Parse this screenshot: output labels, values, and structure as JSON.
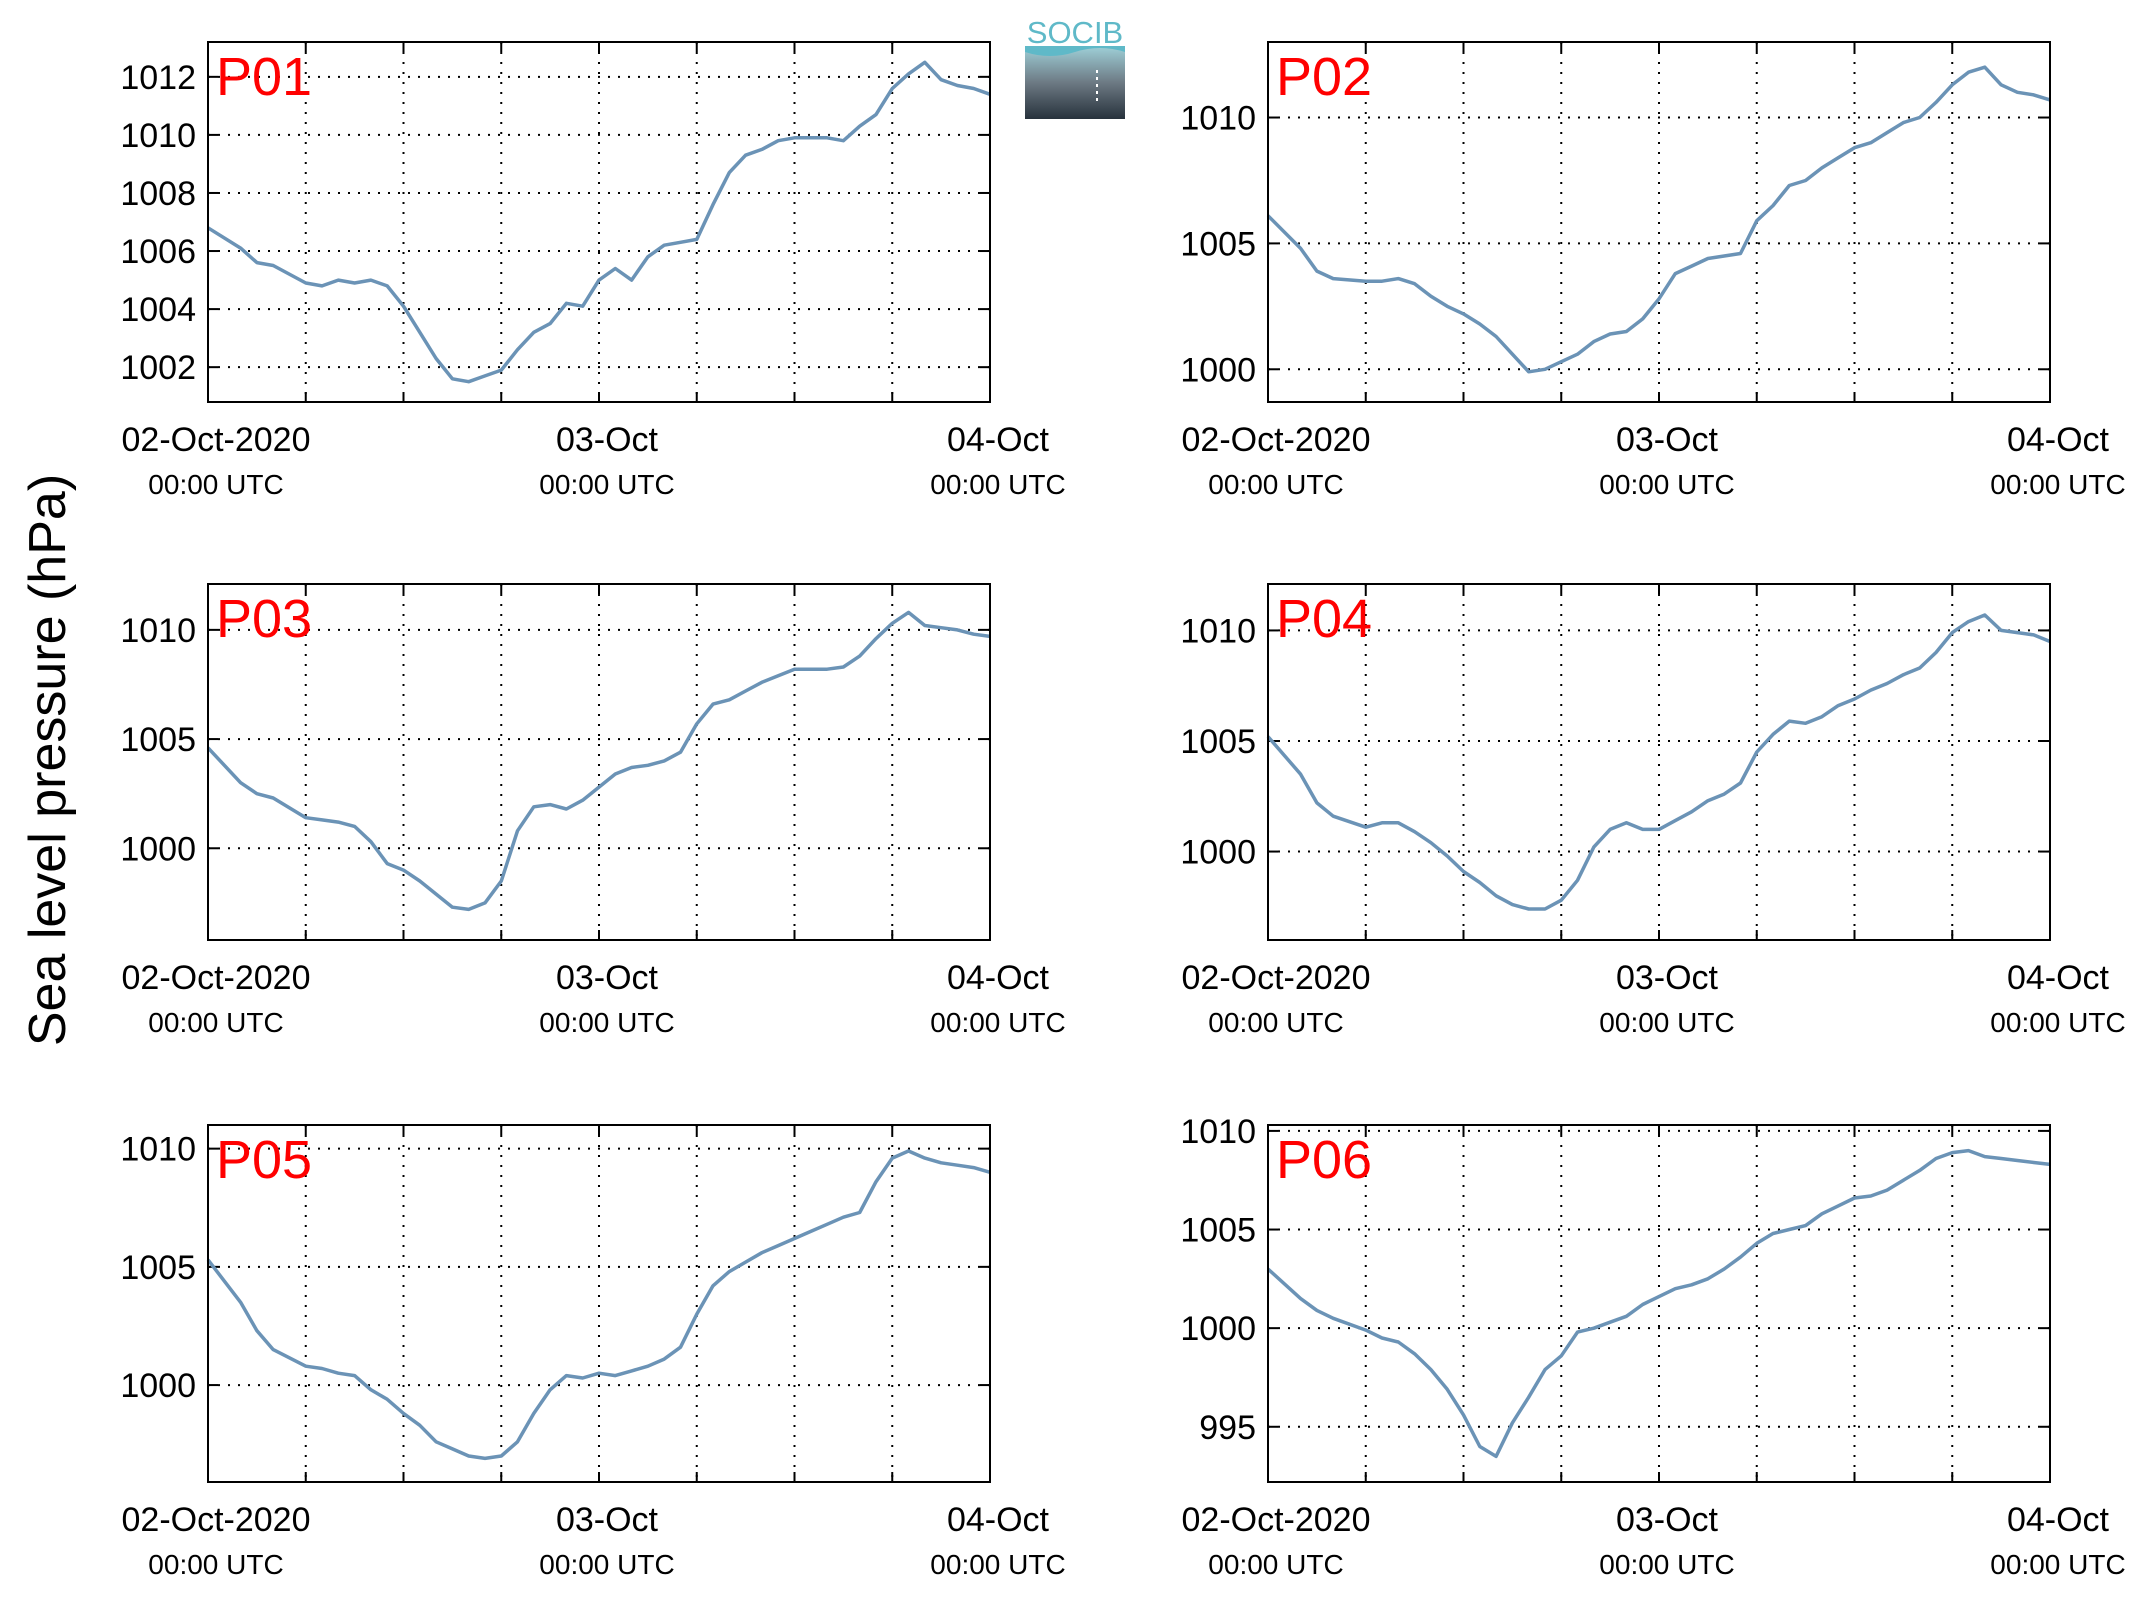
{
  "figure": {
    "ylabel": "Sea level pressure (hPa)",
    "logo_text": "SOCIB",
    "line_color": "#6b93b6",
    "label_color": "#ff0000"
  },
  "chart_data": [
    {
      "type": "line",
      "panel_label": "P01",
      "xlim": [
        0,
        48
      ],
      "ylim": [
        1000.8,
        1013.2
      ],
      "yticks": [
        1002,
        1004,
        1006,
        1008,
        1010,
        1012
      ],
      "xticks": [
        {
          "value": 0,
          "line1": "02-Oct-2020",
          "line2": "00:00 UTC"
        },
        {
          "value": 24,
          "line1": "03-Oct",
          "line2": "00:00 UTC"
        },
        {
          "value": 48,
          "line1": "04-Oct",
          "line2": "00:00 UTC"
        }
      ],
      "grid": true,
      "grid_x_step_hours": 6,
      "x": [
        0,
        2,
        3,
        4,
        6,
        7,
        8,
        9,
        10,
        11,
        12,
        13,
        14,
        15,
        16,
        17,
        18,
        19,
        20,
        21,
        22,
        23,
        24,
        25,
        26,
        27,
        28,
        29,
        30,
        31,
        32,
        33,
        34,
        35,
        36,
        37,
        38,
        39,
        40,
        41,
        42,
        43,
        44,
        45,
        46,
        47,
        48
      ],
      "values": [
        1006.8,
        1006.1,
        1005.6,
        1005.5,
        1004.9,
        1004.8,
        1005.0,
        1004.9,
        1005.0,
        1004.8,
        1004.1,
        1003.2,
        1002.3,
        1001.6,
        1001.5,
        1001.7,
        1001.9,
        1002.6,
        1003.2,
        1003.5,
        1004.2,
        1004.1,
        1005.0,
        1005.4,
        1005.0,
        1005.8,
        1006.2,
        1006.3,
        1006.4,
        1007.6,
        1008.7,
        1009.3,
        1009.5,
        1009.8,
        1009.9,
        1009.9,
        1009.9,
        1009.8,
        1010.3,
        1010.7,
        1011.6,
        1012.1,
        1012.5,
        1011.9,
        1011.7,
        1011.6,
        1011.4
      ]
    },
    {
      "type": "line",
      "panel_label": "P02",
      "xlim": [
        0,
        48
      ],
      "ylim": [
        998.7,
        1013.0
      ],
      "yticks": [
        1000,
        1005,
        1010
      ],
      "xticks": [
        {
          "value": 0,
          "line1": "02-Oct-2020",
          "line2": "00:00 UTC"
        },
        {
          "value": 24,
          "line1": "03-Oct",
          "line2": "00:00 UTC"
        },
        {
          "value": 48,
          "line1": "04-Oct",
          "line2": "00:00 UTC"
        }
      ],
      "grid": true,
      "grid_x_step_hours": 6,
      "x": [
        0,
        2,
        3,
        4,
        6,
        7,
        8,
        9,
        10,
        11,
        12,
        13,
        14,
        15,
        16,
        17,
        18,
        19,
        20,
        21,
        22,
        23,
        24,
        25,
        26,
        27,
        28,
        29,
        30,
        31,
        32,
        33,
        34,
        35,
        36,
        37,
        38,
        39,
        40,
        41,
        42,
        43,
        44,
        45,
        46,
        47,
        48
      ],
      "values": [
        1006.1,
        1004.8,
        1003.9,
        1003.6,
        1003.5,
        1003.5,
        1003.6,
        1003.4,
        1002.9,
        1002.5,
        1002.2,
        1001.8,
        1001.3,
        1000.6,
        999.9,
        1000.0,
        1000.3,
        1000.6,
        1001.1,
        1001.4,
        1001.5,
        1002.0,
        1002.8,
        1003.8,
        1004.1,
        1004.4,
        1004.5,
        1004.6,
        1005.9,
        1006.5,
        1007.3,
        1007.5,
        1008.0,
        1008.4,
        1008.8,
        1009.0,
        1009.4,
        1009.8,
        1010.0,
        1010.6,
        1011.3,
        1011.8,
        1012.0,
        1011.3,
        1011.0,
        1010.9,
        1010.7
      ]
    },
    {
      "type": "line",
      "panel_label": "P03",
      "xlim": [
        0,
        48
      ],
      "ylim": [
        995.8,
        1012.1
      ],
      "yticks": [
        1000,
        1005,
        1010
      ],
      "xticks": [
        {
          "value": 0,
          "line1": "02-Oct-2020",
          "line2": "00:00 UTC"
        },
        {
          "value": 24,
          "line1": "03-Oct",
          "line2": "00:00 UTC"
        },
        {
          "value": 48,
          "line1": "04-Oct",
          "line2": "00:00 UTC"
        }
      ],
      "grid": true,
      "grid_x_step_hours": 6,
      "x": [
        0,
        2,
        3,
        4,
        6,
        7,
        8,
        9,
        10,
        11,
        12,
        13,
        14,
        15,
        16,
        17,
        18,
        19,
        20,
        21,
        22,
        23,
        24,
        25,
        26,
        27,
        28,
        29,
        30,
        31,
        32,
        33,
        34,
        35,
        36,
        37,
        38,
        39,
        40,
        41,
        42,
        43,
        44,
        45,
        46,
        47,
        48
      ],
      "values": [
        1004.6,
        1003.0,
        1002.5,
        1002.3,
        1001.4,
        1001.3,
        1001.2,
        1001.0,
        1000.3,
        999.3,
        999.0,
        998.5,
        997.9,
        997.3,
        997.2,
        997.5,
        998.5,
        1000.8,
        1001.9,
        1002.0,
        1001.8,
        1002.2,
        1002.8,
        1003.4,
        1003.7,
        1003.8,
        1004.0,
        1004.4,
        1005.7,
        1006.6,
        1006.8,
        1007.2,
        1007.6,
        1007.9,
        1008.2,
        1008.2,
        1008.2,
        1008.3,
        1008.8,
        1009.6,
        1010.3,
        1010.8,
        1010.2,
        1010.1,
        1010.0,
        1009.8,
        1009.7
      ]
    },
    {
      "type": "line",
      "panel_label": "P04",
      "xlim": [
        0,
        48
      ],
      "ylim": [
        996.0,
        1012.1
      ],
      "yticks": [
        1000,
        1005,
        1010
      ],
      "xticks": [
        {
          "value": 0,
          "line1": "02-Oct-2020",
          "line2": "00:00 UTC"
        },
        {
          "value": 24,
          "line1": "03-Oct",
          "line2": "00:00 UTC"
        },
        {
          "value": 48,
          "line1": "04-Oct",
          "line2": "00:00 UTC"
        }
      ],
      "grid": true,
      "grid_x_step_hours": 6,
      "x": [
        0,
        2,
        3,
        4,
        6,
        7,
        8,
        9,
        10,
        11,
        12,
        13,
        14,
        15,
        16,
        17,
        18,
        19,
        20,
        21,
        22,
        23,
        24,
        25,
        26,
        27,
        28,
        29,
        30,
        31,
        32,
        33,
        34,
        35,
        36,
        37,
        38,
        39,
        40,
        41,
        42,
        43,
        44,
        45,
        46,
        47,
        48
      ],
      "values": [
        1005.2,
        1003.5,
        1002.2,
        1001.6,
        1001.1,
        1001.3,
        1001.3,
        1000.9,
        1000.4,
        999.8,
        999.1,
        998.6,
        998.0,
        997.6,
        997.4,
        997.4,
        997.8,
        998.7,
        1000.2,
        1001.0,
        1001.3,
        1001.0,
        1001.0,
        1001.4,
        1001.8,
        1002.3,
        1002.6,
        1003.1,
        1004.5,
        1005.3,
        1005.9,
        1005.8,
        1006.1,
        1006.6,
        1006.9,
        1007.3,
        1007.6,
        1008.0,
        1008.3,
        1009.0,
        1009.9,
        1010.4,
        1010.7,
        1010.0,
        1009.9,
        1009.8,
        1009.5
      ]
    },
    {
      "type": "line",
      "panel_label": "P05",
      "xlim": [
        0,
        48
      ],
      "ylim": [
        995.9,
        1011.0
      ],
      "yticks": [
        1000,
        1005,
        1010
      ],
      "xticks": [
        {
          "value": 0,
          "line1": "02-Oct-2020",
          "line2": "00:00 UTC"
        },
        {
          "value": 24,
          "line1": "03-Oct",
          "line2": "00:00 UTC"
        },
        {
          "value": 48,
          "line1": "04-Oct",
          "line2": "00:00 UTC"
        }
      ],
      "grid": true,
      "grid_x_step_hours": 6,
      "x": [
        0,
        2,
        3,
        4,
        6,
        7,
        8,
        9,
        10,
        11,
        12,
        13,
        14,
        15,
        16,
        17,
        18,
        19,
        20,
        21,
        22,
        23,
        24,
        25,
        26,
        27,
        28,
        29,
        30,
        31,
        32,
        33,
        34,
        35,
        36,
        37,
        38,
        39,
        40,
        41,
        42,
        43,
        44,
        45,
        46,
        47,
        48
      ],
      "values": [
        1005.3,
        1003.5,
        1002.3,
        1001.5,
        1000.8,
        1000.7,
        1000.5,
        1000.4,
        999.8,
        999.4,
        998.8,
        998.3,
        997.6,
        997.3,
        997.0,
        996.9,
        997.0,
        997.6,
        998.8,
        999.8,
        1000.4,
        1000.3,
        1000.5,
        1000.4,
        1000.6,
        1000.8,
        1001.1,
        1001.6,
        1003.0,
        1004.2,
        1004.8,
        1005.2,
        1005.6,
        1005.9,
        1006.2,
        1006.5,
        1006.8,
        1007.1,
        1007.3,
        1008.6,
        1009.6,
        1009.9,
        1009.6,
        1009.4,
        1009.3,
        1009.2,
        1009.0
      ]
    },
    {
      "type": "line",
      "panel_label": "P06",
      "xlim": [
        0,
        48
      ],
      "ylim": [
        992.2,
        1010.3
      ],
      "yticks": [
        995,
        1000,
        1005,
        1010
      ],
      "xticks": [
        {
          "value": 0,
          "line1": "02-Oct-2020",
          "line2": "00:00 UTC"
        },
        {
          "value": 24,
          "line1": "03-Oct",
          "line2": "00:00 UTC"
        },
        {
          "value": 48,
          "line1": "04-Oct",
          "line2": "00:00 UTC"
        }
      ],
      "grid": true,
      "grid_x_step_hours": 6,
      "x": [
        0,
        2,
        3,
        4,
        6,
        7,
        8,
        9,
        10,
        11,
        12,
        13,
        14,
        15,
        16,
        17,
        18,
        19,
        20,
        21,
        22,
        23,
        24,
        25,
        26,
        27,
        28,
        29,
        30,
        31,
        32,
        33,
        34,
        35,
        36,
        37,
        38,
        39,
        40,
        41,
        42,
        43,
        44,
        45,
        46,
        47,
        48
      ],
      "values": [
        1003.0,
        1001.5,
        1000.9,
        1000.5,
        999.9,
        999.5,
        999.3,
        998.7,
        997.9,
        996.9,
        995.6,
        994.0,
        993.5,
        995.2,
        996.5,
        997.9,
        998.6,
        999.8,
        1000.0,
        1000.3,
        1000.6,
        1001.2,
        1001.6,
        1002.0,
        1002.2,
        1002.5,
        1003.0,
        1003.6,
        1004.3,
        1004.8,
        1005.0,
        1005.2,
        1005.8,
        1006.2,
        1006.6,
        1006.7,
        1007.0,
        1007.5,
        1008.0,
        1008.6,
        1008.9,
        1009.0,
        1008.7,
        1008.6,
        1008.5,
        1008.4,
        1008.3
      ]
    }
  ]
}
